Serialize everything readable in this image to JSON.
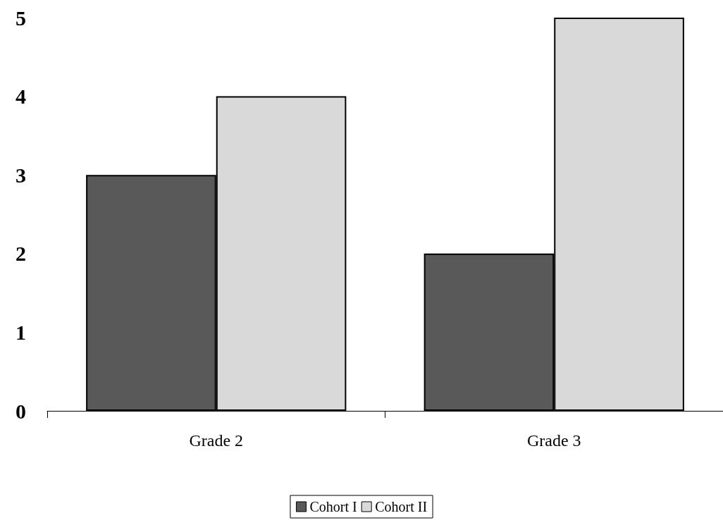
{
  "chart_data": {
    "type": "bar",
    "categories": [
      "Grade 2",
      "Grade 3"
    ],
    "series": [
      {
        "name": "Cohort I",
        "color": "#595959",
        "values": [
          3,
          2
        ]
      },
      {
        "name": "Cohort II",
        "color": "#d9d9d9",
        "values": [
          4,
          5
        ]
      }
    ],
    "ylim": [
      0,
      5
    ],
    "yticks": [
      0,
      1,
      2,
      3,
      4,
      5
    ],
    "grid": false,
    "legend": "bottom"
  }
}
